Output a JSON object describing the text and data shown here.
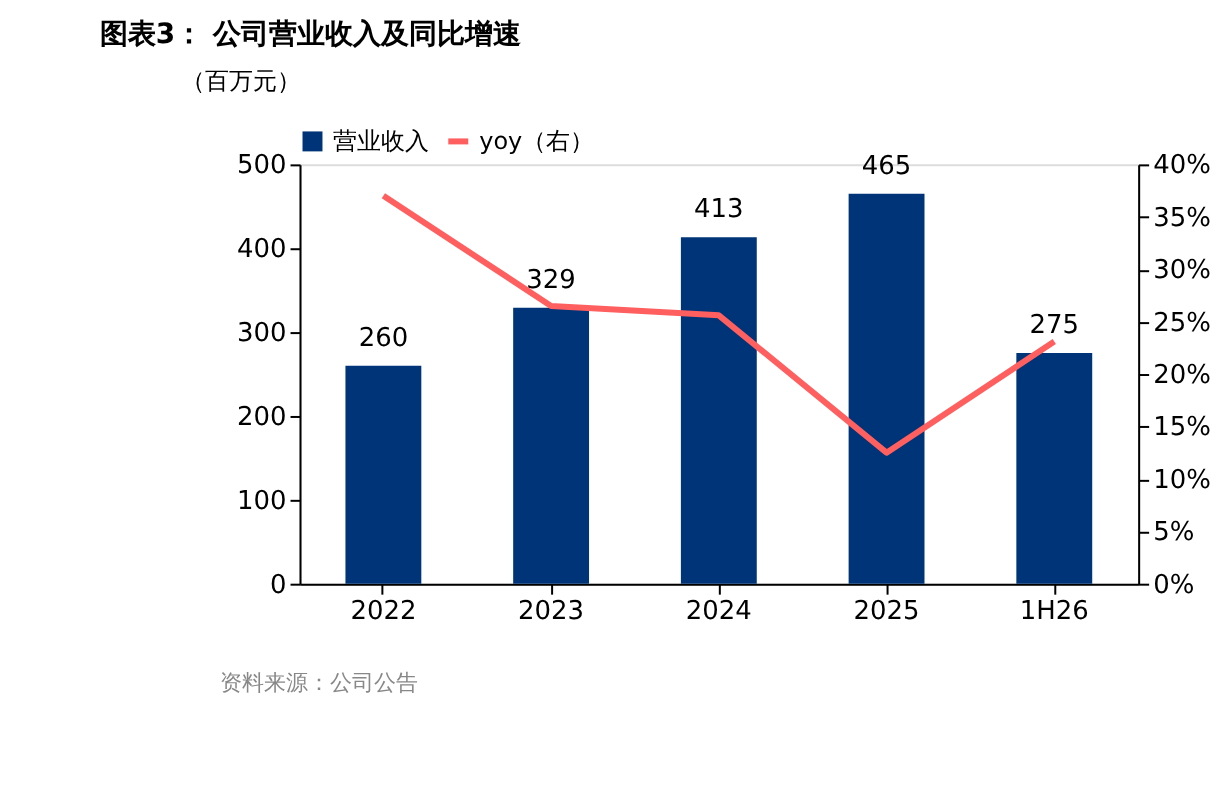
{
  "chart_data": {
    "type": "bar",
    "title": "图表3：  公司营业收入及同比增速",
    "ylabel": "（百万元）",
    "categories": [
      "2022",
      "2023",
      "2024",
      "2025",
      "1H26"
    ],
    "series": [
      {
        "name": "营业收入",
        "color": "#003478",
        "values": [
          260,
          329,
          413,
          465,
          275
        ],
        "value_labels": [
          "260",
          "329",
          "413",
          "465",
          "275"
        ]
      },
      {
        "name": "yoy（右）",
        "type": "line",
        "axis": "y2",
        "color": "#ff5f5f",
        "values": [
          37.0,
          26.5,
          25.6,
          12.5,
          23.1
        ]
      }
    ],
    "ylim": [
      0,
      500
    ],
    "yticks": [
      0,
      100,
      200,
      300,
      400,
      500
    ],
    "y2lim": [
      0,
      40
    ],
    "y2ticks": [
      {
        "value": 0,
        "label": "0%"
      },
      {
        "value": 5,
        "label": "5%"
      },
      {
        "value": 10,
        "label": "10%"
      },
      {
        "value": 15,
        "label": "15%"
      },
      {
        "value": 20,
        "label": "20%"
      },
      {
        "value": 25,
        "label": "25%"
      },
      {
        "value": 30,
        "label": "30%"
      },
      {
        "value": 35,
        "label": "35%"
      },
      {
        "value": 40,
        "label": "40%"
      }
    ],
    "legend": "top",
    "grid": false,
    "marker": "none",
    "line_style": "solid",
    "annotations": [
      "资料来源：公司公告"
    ]
  }
}
